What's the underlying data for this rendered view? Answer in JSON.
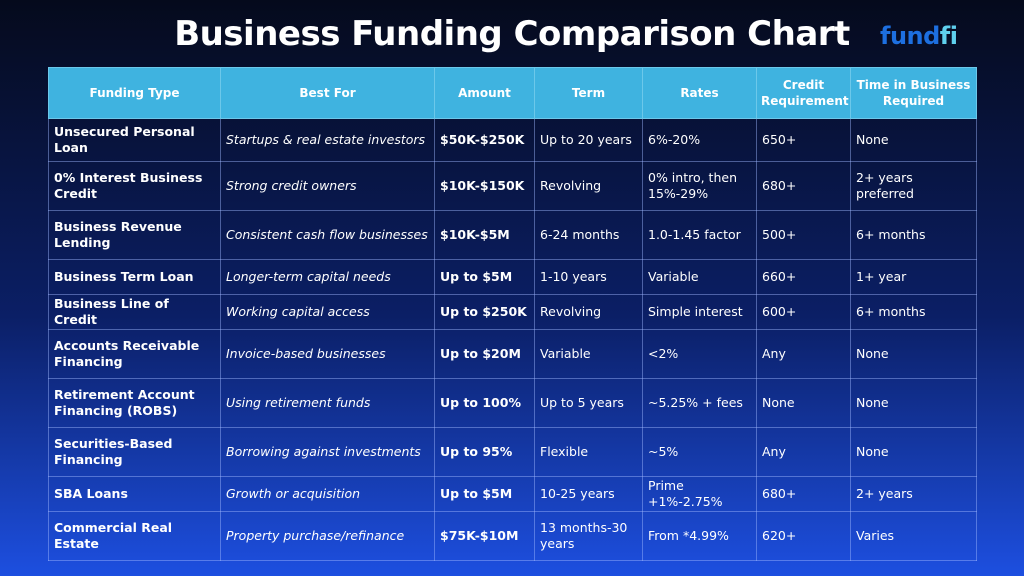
{
  "title": "Business Funding Comparison Chart",
  "logo": {
    "part1": "fund",
    "part2": "fi"
  },
  "colors": {
    "header_bg": "#3fb3e0",
    "logo_dark": "#1d6fe0",
    "logo_light": "#5fd0ee"
  },
  "columns": [
    "Funding Type",
    "Best For",
    "Amount",
    "Term",
    "Rates",
    "Credit Requirement",
    "Time in Business Required"
  ],
  "rows": [
    {
      "type": "Unsecured Personal Loan",
      "best": "Startups & real estate investors",
      "amount": "$50K-$250K",
      "term": "Up to 20 years",
      "rates": "6%-20%",
      "credit": "650+",
      "time": "None"
    },
    {
      "type": "0% Interest Business Credit",
      "best": "Strong credit owners",
      "amount": "$10K-$150K",
      "term": "Revolving",
      "rates": "0% intro, then 15%-29%",
      "credit": "680+",
      "time": "2+ years preferred"
    },
    {
      "type": "Business Revenue Lending",
      "best": "Consistent cash flow businesses",
      "amount": "$10K-$5M",
      "term": "6-24 months",
      "rates": "1.0-1.45 factor",
      "credit": "500+",
      "time": "6+ months"
    },
    {
      "type": "Business Term Loan",
      "best": "Longer-term capital needs",
      "amount": "Up to $5M",
      "term": "1-10 years",
      "rates": "Variable",
      "credit": "660+",
      "time": "1+ year"
    },
    {
      "type": "Business Line of Credit",
      "best": "Working capital access",
      "amount": "Up to $250K",
      "term": "Revolving",
      "rates": "Simple interest",
      "credit": "600+",
      "time": "6+ months"
    },
    {
      "type": "Accounts Receivable Financing",
      "best": "Invoice-based businesses",
      "amount": "Up to $20M",
      "term": "Variable",
      "rates": "<2%",
      "credit": "Any",
      "time": "None"
    },
    {
      "type": "Retirement Account Financing (ROBS)",
      "best": "Using retirement funds",
      "amount": "Up to 100%",
      "term": "Up to 5 years",
      "rates": "~5.25% + fees",
      "credit": "None",
      "time": "None"
    },
    {
      "type": "Securities-Based Financing",
      "best": "Borrowing against investments",
      "amount": "Up to 95%",
      "term": "Flexible",
      "rates": "~5%",
      "credit": "Any",
      "time": "None"
    },
    {
      "type": "SBA Loans",
      "best": "Growth or acquisition",
      "amount": "Up to $5M",
      "term": "10-25 years",
      "rates": "Prime +1%-2.75%",
      "credit": "680+",
      "time": "2+ years"
    },
    {
      "type": "Commercial Real Estate",
      "best": "Property purchase/refinance",
      "amount": "$75K-$10M",
      "term": "13 months-30 years",
      "rates": "From *4.99%",
      "credit": "620+",
      "time": "Varies"
    }
  ]
}
